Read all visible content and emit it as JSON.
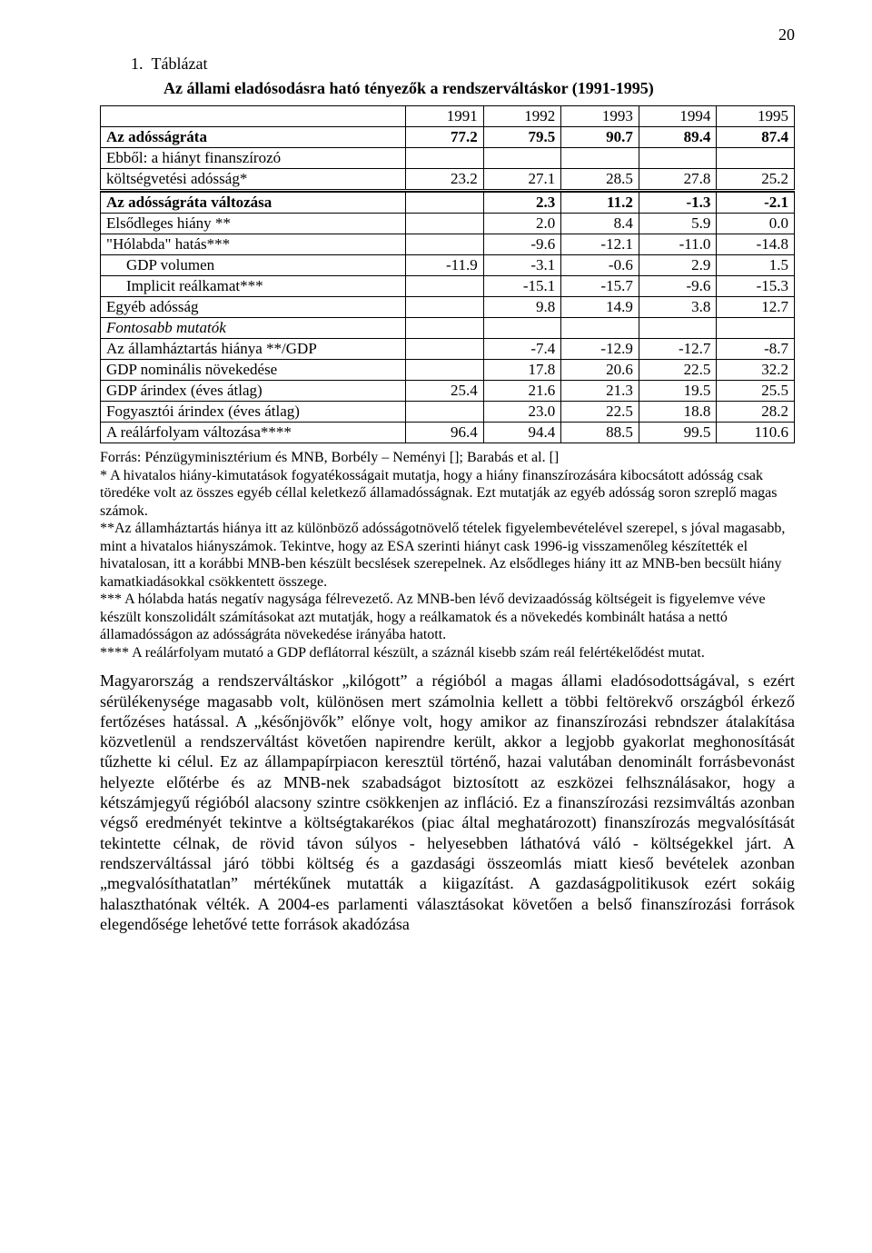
{
  "page_number": "20",
  "title": "1.  Táblázat",
  "subtitle": "Az állami eladósodásra ható tényezők a rendszerváltáskor (1991-1995)",
  "table": {
    "columns": [
      "1991",
      "1992",
      "1993",
      "1994",
      "1995"
    ],
    "rows": [
      {
        "label": "Az adósságráta",
        "vals": [
          "77.2",
          "79.5",
          "90.7",
          "89.4",
          "87.4"
        ],
        "bold": true
      },
      {
        "label": "Ebből: a hiányt finanszírozó",
        "vals": [
          "",
          "",
          "",
          "",
          ""
        ]
      },
      {
        "label": "költségvetési adósság*",
        "vals": [
          "23.2",
          "27.1",
          "28.5",
          "27.8",
          "25.2"
        ]
      },
      {
        "sep": true
      },
      {
        "label": "Az adósságráta változása",
        "vals": [
          "",
          "2.3",
          "11.2",
          "-1.3",
          "-2.1"
        ],
        "bold": true
      },
      {
        "label": "Elsődleges hiány **",
        "vals": [
          "",
          "2.0",
          "8.4",
          "5.9",
          "0.0"
        ]
      },
      {
        "label": "\"Hólabda\" hatás***",
        "vals": [
          "",
          "-9.6",
          "-12.1",
          "-11.0",
          "-14.8"
        ]
      },
      {
        "label": "GDP volumen",
        "vals": [
          "-11.9",
          "-3.1",
          "-0.6",
          "2.9",
          "1.5"
        ],
        "indent": true
      },
      {
        "label": "Implicit reálkamat***",
        "vals": [
          "",
          "-15.1",
          "-15.7",
          "-9.6",
          "-15.3"
        ],
        "indent": true
      },
      {
        "label": "Egyéb adósság",
        "vals": [
          "",
          "9.8",
          "14.9",
          "3.8",
          "12.7"
        ]
      },
      {
        "label": "Fontosabb mutatók",
        "vals": [
          "",
          "",
          "",
          "",
          ""
        ],
        "italic": true
      },
      {
        "label": "Az államháztartás hiánya **/GDP",
        "vals": [
          "",
          "-7.4",
          "-12.9",
          "-12.7",
          "-8.7"
        ]
      },
      {
        "label": "GDP nominális növekedése",
        "vals": [
          "",
          "17.8",
          "20.6",
          "22.5",
          "32.2"
        ]
      },
      {
        "label": "GDP árindex (éves átlag)",
        "vals": [
          "25.4",
          "21.6",
          "21.3",
          "19.5",
          "25.5"
        ]
      },
      {
        "label": "Fogyasztói árindex (éves átlag)",
        "vals": [
          "",
          "23.0",
          "22.5",
          "18.8",
          "28.2"
        ]
      },
      {
        "label": "A reálárfolyam változása****",
        "vals": [
          "96.4",
          "94.4",
          "88.5",
          "99.5",
          "110.6"
        ]
      }
    ]
  },
  "notes": "Forrás: Pénzügyminisztérium és MNB, Borbély – Neményi []; Barabás et al. []\n* A hivatalos hiány-kimutatások fogyatékosságait mutatja, hogy a hiány finanszírozására kibocsátott adósság csak töredéke volt az összes egyéb céllal keletkező államadósságnak. Ezt mutatják az egyéb adósság soron szreplő magas számok.\n**Az államháztartás hiánya itt az különböző adósságotnövelő tételek figyelembevételével szerepel, s jóval magasabb, mint a hivatalos hiányszámok.  Tekintve, hogy az ESA szerinti hiányt cask 1996-ig visszamenőleg készítették el hivatalosan, itt a korábbi MNB-ben készült becslések szerepelnek. Az elsődleges hiány itt az MNB-ben becsült hiány  kamatkiadásokkal csökkentett összege.\n*** A hólabda hatás negatív nagysága félrevezető. Az MNB-ben lévő devizaadósság költségeit is figyelemve véve készült konszolidált számításokat azt mutatják, hogy a reálkamatok és a növekedés kombinált hatása  a nettó államadósságon  az adósságráta növekedése irányába hatott.\n**** A reálárfolyam mutató a GDP deflátorral készült, a száznál kisebb szám reál felértékelődést mutat.",
  "paragraph": "Magyarország a rendszerváltáskor „kilógott” a régióból a magas állami eladósodottságával, s ezért sérülékenysége magasabb volt, különösen mert számolnia kellett a többi feltörekvő országból érkező fertőzéses hatással. A „későnjövők” előnye volt, hogy amikor az finanszírozási rebndszer átalakítása közvetlenül a  rendszerváltást követően napirendre került, akkor a legjobb gyakorlat meghonosítását tűzhette ki célul. Ez az állampapírpiacon keresztül történő, hazai valutában denominált forrásbevonást helyezte előtérbe és az MNB-nek szabadságot biztosított az eszközei felhsználásakor, hogy a kétszámjegyű régióból alacsony szintre csökkenjen az infláció. Ez a finanszírozási rezsimváltás azonban végső eredményét tekintve a költségtakarékos (piac által meghatározott) finanszírozás megvalósítását tekintette célnak, de rövid távon súlyos - helyesebben láthatóvá váló - költségekkel járt. A rendszerváltással járó többi költség és a gazdasági összeomlás miatt kieső bevételek azonban „megvalósíthatatlan” mértékűnek mutatták a kiigazítást.  A gazdaságpolitikusok ezért sokáig halaszthatónak vélték. A 2004-es parlamenti választásokat követően a belső finanszírozási források elegendősége lehetővé tette források akadózása"
}
